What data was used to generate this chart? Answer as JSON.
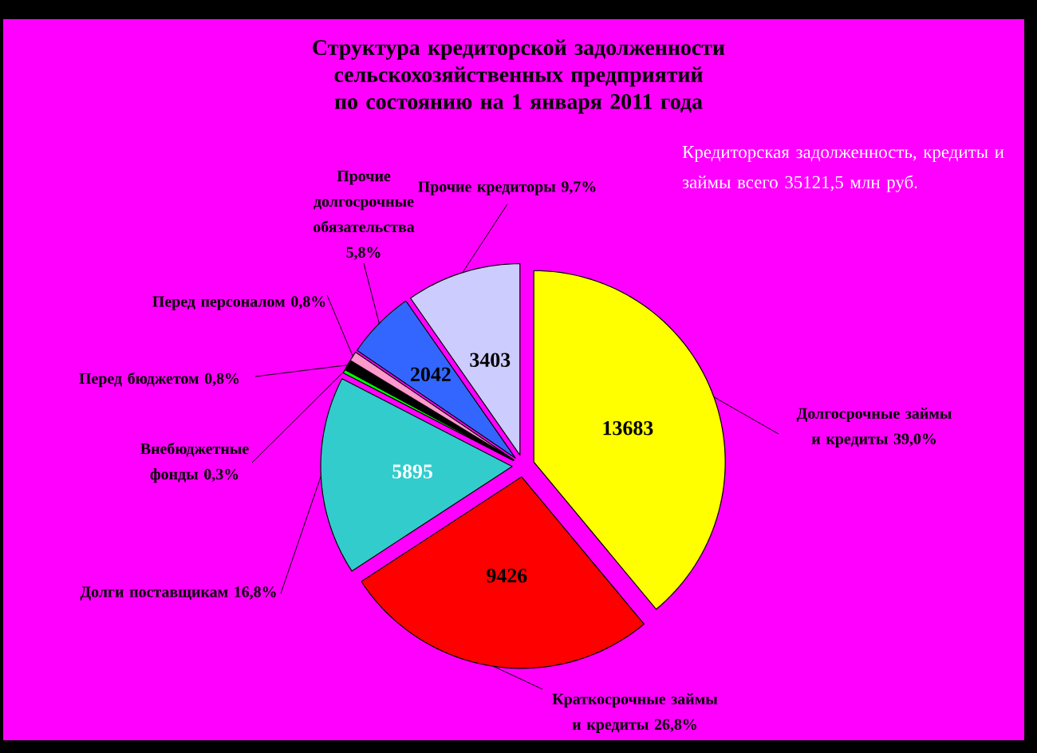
{
  "chart_data": {
    "type": "pie",
    "title": "Структура кредиторской задолженности сельскохозяйственных предприятий по состоянию на 1 января 2011 года",
    "categories": [
      "Долгосрочные займы и кредиты 39,0%",
      "Краткосрочные займы и кредиты 26,8%",
      "Долги поставщикам 16,8%",
      "Внебюджетные фонды 0,3%",
      "Перед бюджетом 0,8%",
      "Перед персоналом 0,8%",
      "Прочие долгосрочные обязательства 5,8%",
      "Прочие кредиторы 9,7%"
    ],
    "values": [
      13683,
      9426,
      5895,
      105.5,
      283.5,
      283.5,
      2042,
      3403
    ],
    "colors": [
      "#ffff00",
      "#ff0000",
      "#33cccc",
      "#00ff00",
      "#000000",
      "#ff99cc",
      "#3366ff",
      "#ccccff"
    ],
    "value_labels": [
      "13683",
      "9426",
      "5895",
      null,
      null,
      null,
      "2042",
      "3403"
    ],
    "annotations": [
      "Кредиторская задолженность, кредиты и займы всего 35121,5 млн руб."
    ]
  }
}
